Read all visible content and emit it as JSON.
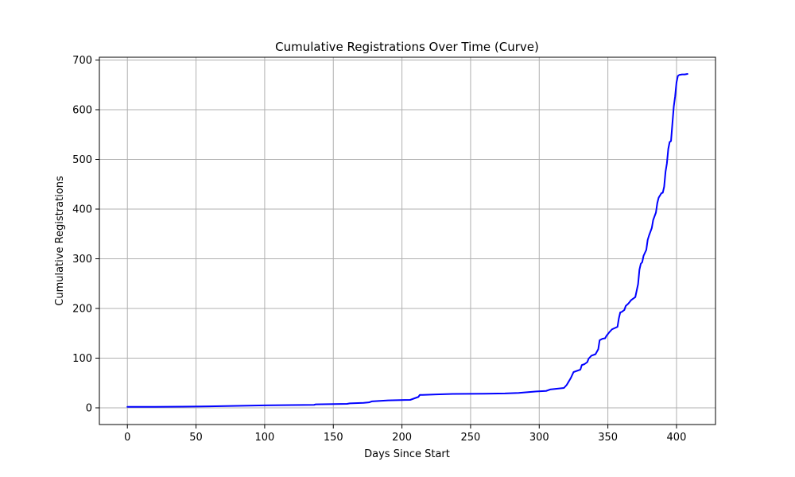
{
  "chart_data": {
    "type": "line",
    "title": "Cumulative Registrations Over Time (Curve)",
    "xlabel": "Days Since Start",
    "ylabel": "Cumulative Registrations",
    "xlim": [
      -20.4,
      428.4
    ],
    "ylim": [
      -33.6,
      705.6
    ],
    "grid": true,
    "xticks": [
      0,
      50,
      100,
      150,
      200,
      250,
      300,
      350,
      400
    ],
    "yticks": [
      0,
      100,
      200,
      300,
      400,
      500,
      600,
      700
    ],
    "series": [
      {
        "color": "#0000ff",
        "x": [
          0,
          20,
          40,
          60,
          80,
          100,
          120,
          136,
          137,
          160,
          162,
          172,
          176,
          178,
          190,
          206,
          212,
          213,
          215,
          225,
          237,
          260,
          275,
          285,
          298,
          305,
          308,
          318,
          320,
          323,
          325,
          330,
          331,
          333,
          335,
          336,
          338,
          341,
          343,
          344,
          346,
          348,
          349,
          351,
          353,
          357,
          358,
          359,
          360,
          362,
          363,
          365,
          367,
          368,
          370,
          372,
          373,
          374,
          375,
          376,
          378,
          379,
          380,
          382,
          383,
          385,
          386,
          387,
          389,
          390,
          391,
          392,
          393,
          394,
          395,
          396,
          397,
          398,
          399,
          400,
          401,
          402,
          404,
          406,
          408
        ],
        "values": [
          2,
          2,
          2.5,
          3,
          4,
          5,
          5.5,
          6,
          7,
          8,
          9,
          10,
          11,
          13,
          15,
          16,
          22,
          26,
          26,
          27,
          28,
          28.5,
          29,
          30,
          33,
          34,
          37,
          40,
          46,
          60,
          72,
          77,
          86,
          88,
          92,
          99,
          105,
          108,
          118,
          136,
          139,
          140,
          145,
          152,
          158,
          163,
          180,
          192,
          193,
          197,
          205,
          210,
          217,
          219,
          223,
          249,
          278,
          290,
          293,
          306,
          318,
          338,
          347,
          362,
          378,
          393,
          412,
          423,
          432,
          433,
          445,
          475,
          492,
          521,
          535,
          537,
          572,
          606,
          627,
          655,
          668,
          670,
          671,
          671,
          672
        ]
      }
    ]
  }
}
